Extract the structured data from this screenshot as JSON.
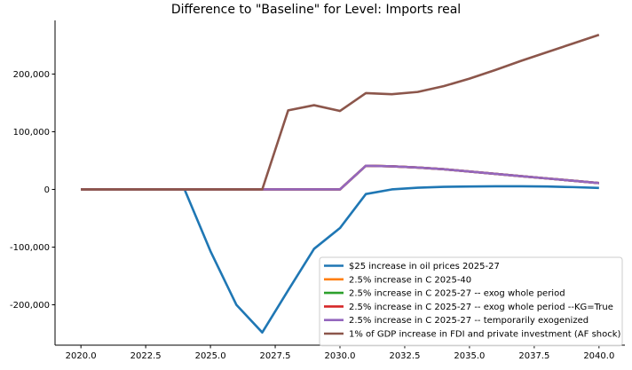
{
  "chart_data": {
    "type": "line",
    "title": "Difference to \"Baseline\" for Level: Imports real",
    "xlabel": "",
    "ylabel": "",
    "xlim": [
      2019.0,
      2041.0
    ],
    "ylim": [
      -270000,
      293000
    ],
    "x": [
      2020,
      2021,
      2022,
      2023,
      2024,
      2025,
      2026,
      2027,
      2028,
      2029,
      2030,
      2031,
      2032,
      2033,
      2034,
      2035,
      2036,
      2037,
      2038,
      2039,
      2040
    ],
    "xticks": [
      2020.0,
      2022.5,
      2025.0,
      2027.5,
      2030.0,
      2032.5,
      2035.0,
      2037.5,
      2040.0
    ],
    "xtick_labels": [
      "2020.0",
      "2022.5",
      "2025.0",
      "2027.5",
      "2030.0",
      "2032.5",
      "2035.0",
      "2037.5",
      "2040.0"
    ],
    "yticks": [
      -200000,
      -100000,
      0,
      100000,
      200000
    ],
    "ytick_labels": [
      "-200,000",
      "-100,000",
      "0",
      "100,000",
      "200,000"
    ],
    "grid": false,
    "legend_position": "lower-right",
    "series": [
      {
        "name": "$25 increase in oil prices 2025-27",
        "color": "#1f77b4",
        "values": [
          0,
          0,
          0,
          0,
          0,
          -107000,
          -200000,
          -248000,
          -175000,
          -103000,
          -67000,
          -8000,
          0,
          3000,
          4500,
          5000,
          5500,
          5500,
          5000,
          4000,
          2500
        ]
      },
      {
        "name": "2.5% increase in C 2025-40",
        "color": "#ff7f0e",
        "values": [
          0,
          0,
          0,
          0,
          0,
          0,
          0,
          0,
          0,
          0,
          0,
          41000,
          40000,
          38000,
          35000,
          31000,
          27000,
          23000,
          19000,
          15000,
          11000
        ]
      },
      {
        "name": "2.5% increase in C 2025-27 -- exog whole period",
        "color": "#2ca02c",
        "values": [
          0,
          0,
          0,
          0,
          0,
          0,
          0,
          0,
          0,
          0,
          0,
          41000,
          40000,
          38000,
          35000,
          31000,
          27000,
          23000,
          19000,
          15000,
          11000
        ]
      },
      {
        "name": "2.5% increase in C 2025-27 -- exog whole period --KG=True",
        "color": "#d62728",
        "values": [
          0,
          0,
          0,
          0,
          0,
          0,
          0,
          0,
          0,
          0,
          0,
          41000,
          40000,
          38000,
          35000,
          31000,
          27000,
          23000,
          19000,
          15000,
          11000
        ]
      },
      {
        "name": "2.5% increase in C 2025-27 -- temporarily exogenized",
        "color": "#9467bd",
        "values": [
          0,
          0,
          0,
          0,
          0,
          0,
          0,
          0,
          0,
          0,
          0,
          41000,
          40000,
          38000,
          35000,
          31000,
          27000,
          23000,
          19000,
          15000,
          11000
        ]
      },
      {
        "name": "1% of GDP increase in FDI and private investment (AF shock)",
        "color": "#8c564b",
        "values": [
          0,
          0,
          0,
          0,
          0,
          0,
          0,
          0,
          137000,
          146000,
          136000,
          167000,
          165000,
          169000,
          179000,
          192000,
          207000,
          223000,
          238000,
          253000,
          268000
        ]
      }
    ]
  }
}
